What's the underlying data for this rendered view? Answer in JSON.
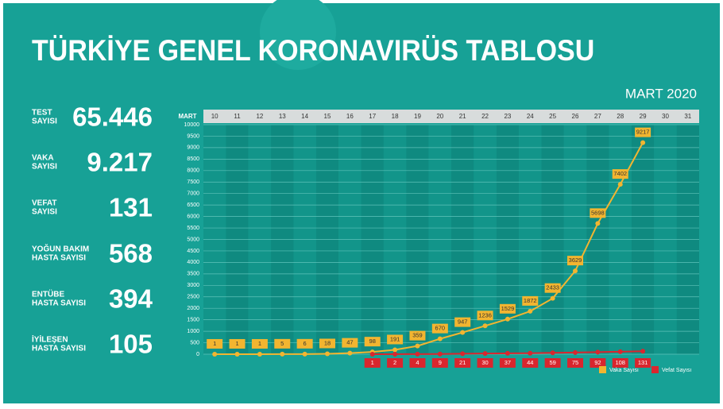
{
  "chart_data": {
    "type": "line",
    "title": "TÜRKİYE GENEL KORONAVIRÜS TABLOSU",
    "subtitle": "MART 2020",
    "x_label": "MART",
    "categories": [
      "10",
      "11",
      "12",
      "13",
      "14",
      "15",
      "16",
      "17",
      "18",
      "19",
      "20",
      "21",
      "22",
      "23",
      "24",
      "25",
      "26",
      "27",
      "28",
      "29",
      "30",
      "31"
    ],
    "series": [
      {
        "name": "Vaka Sayısı",
        "color": "#f2b530",
        "values": [
          1,
          1,
          1,
          5,
          6,
          18,
          47,
          98,
          191,
          359,
          670,
          947,
          1236,
          1529,
          1872,
          2433,
          3629,
          5698,
          7402,
          9217,
          null,
          null
        ]
      },
      {
        "name": "Vefat Sayısı",
        "color": "#d9262e",
        "values": [
          null,
          null,
          null,
          null,
          null,
          null,
          null,
          1,
          2,
          4,
          9,
          21,
          30,
          37,
          44,
          59,
          75,
          92,
          108,
          131,
          null,
          null
        ]
      }
    ],
    "ylim": [
      0,
      10000
    ],
    "yticks": [
      0,
      500,
      1000,
      1500,
      2000,
      2500,
      3000,
      3500,
      4000,
      4500,
      5000,
      5500,
      6000,
      6500,
      7000,
      7500,
      8000,
      8500,
      9000,
      9500,
      10000
    ],
    "grid": true,
    "legend": "lower right"
  },
  "stats": [
    {
      "label": [
        "TEST",
        "SAYISI"
      ],
      "value": "65.446"
    },
    {
      "label": [
        "VAKA",
        "SAYISI"
      ],
      "value": "9.217"
    },
    {
      "label": [
        "VEFAT",
        "SAYISI"
      ],
      "value": "131"
    },
    {
      "label": [
        "YOĞUN BAKIM",
        "HASTA SAYISI"
      ],
      "value": "568"
    },
    {
      "label": [
        "ENTÜBE",
        "HASTA SAYISI"
      ],
      "value": "394"
    },
    {
      "label": [
        "İYİLEŞEN",
        "HASTA SAYISI"
      ],
      "value": "105"
    }
  ]
}
